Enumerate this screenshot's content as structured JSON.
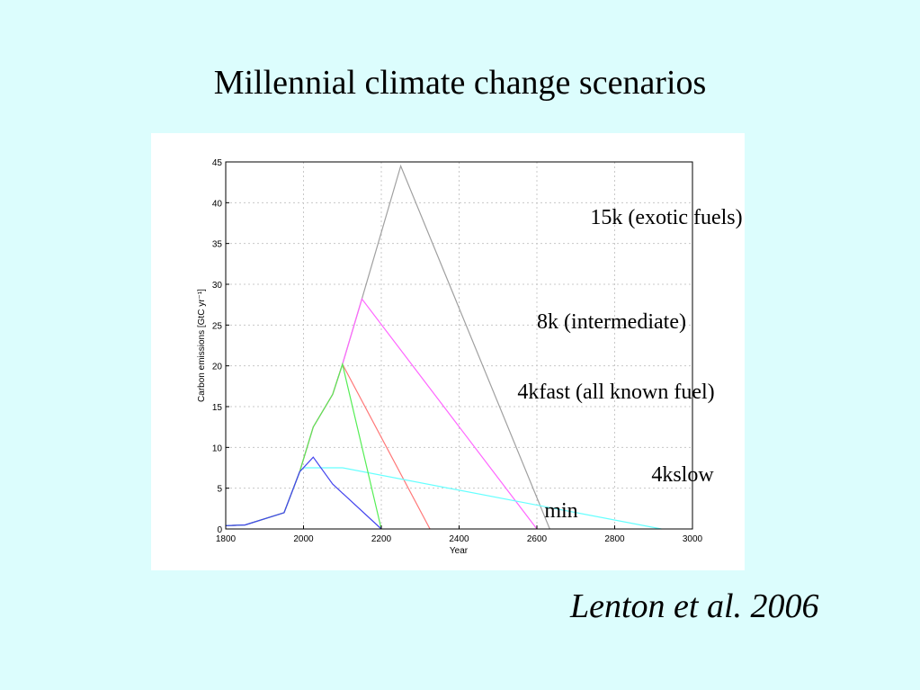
{
  "slide": {
    "title": "Millennial climate change scenarios",
    "citation": "Lenton et al. 2006"
  },
  "chart_data": {
    "type": "line",
    "title": "",
    "xlabel": "Year",
    "ylabel": "Carbon emissions [GtC yr⁻¹]",
    "xlim": [
      1800,
      3000
    ],
    "ylim": [
      0,
      45
    ],
    "xticks": [
      1800,
      2000,
      2200,
      2400,
      2600,
      2800,
      3000
    ],
    "yticks": [
      0,
      5,
      10,
      15,
      20,
      25,
      30,
      35,
      40,
      45
    ],
    "grid": true,
    "series": [
      {
        "name": "15k (exotic fuels)",
        "color": "#a0a0a0",
        "points": [
          [
            1800,
            0.4
          ],
          [
            1850,
            0.5
          ],
          [
            1950,
            2.0
          ],
          [
            1990,
            7.0
          ],
          [
            2025,
            12.5
          ],
          [
            2075,
            16.5
          ],
          [
            2100,
            20.2
          ],
          [
            2150,
            28.2
          ],
          [
            2250,
            44.5
          ],
          [
            2633,
            0
          ]
        ]
      },
      {
        "name": "8k (intermediate)",
        "color": "#ff66ff",
        "points": [
          [
            1800,
            0.4
          ],
          [
            1850,
            0.5
          ],
          [
            1950,
            2.0
          ],
          [
            1990,
            7.0
          ],
          [
            2025,
            12.5
          ],
          [
            2075,
            16.5
          ],
          [
            2100,
            20.2
          ],
          [
            2150,
            28.2
          ],
          [
            2600,
            0
          ]
        ]
      },
      {
        "name": "4kfast (all known fuel)",
        "color": "#ff7777",
        "points": [
          [
            1800,
            0.4
          ],
          [
            1850,
            0.5
          ],
          [
            1950,
            2.0
          ],
          [
            1990,
            7.0
          ],
          [
            2025,
            12.5
          ],
          [
            2075,
            16.5
          ],
          [
            2100,
            20.2
          ],
          [
            2325,
            0
          ]
        ]
      },
      {
        "name": "4kslow",
        "color": "#66ffff",
        "points": [
          [
            1800,
            0.4
          ],
          [
            1850,
            0.5
          ],
          [
            1950,
            2.0
          ],
          [
            1990,
            7.0
          ],
          [
            2000,
            7.5
          ],
          [
            2100,
            7.5
          ],
          [
            2920,
            0
          ]
        ]
      },
      {
        "name": "green",
        "color": "#55ee55",
        "points": [
          [
            1800,
            0.4
          ],
          [
            1850,
            0.5
          ],
          [
            1950,
            2.0
          ],
          [
            1990,
            7.0
          ],
          [
            2025,
            12.5
          ],
          [
            2075,
            16.5
          ],
          [
            2100,
            20.2
          ],
          [
            2200,
            0
          ]
        ]
      },
      {
        "name": "min",
        "color": "#4444ee",
        "points": [
          [
            1800,
            0.4
          ],
          [
            1850,
            0.5
          ],
          [
            1950,
            2.0
          ],
          [
            1990,
            7.0
          ],
          [
            2025,
            8.8
          ],
          [
            2075,
            5.5
          ],
          [
            2200,
            0
          ]
        ]
      }
    ],
    "annotations": [
      {
        "text": "15k (exotic fuels)"
      },
      {
        "text": "8k (intermediate)"
      },
      {
        "text": "4kfast (all known fuel)"
      },
      {
        "text": "4kslow"
      },
      {
        "text": "min"
      }
    ]
  }
}
